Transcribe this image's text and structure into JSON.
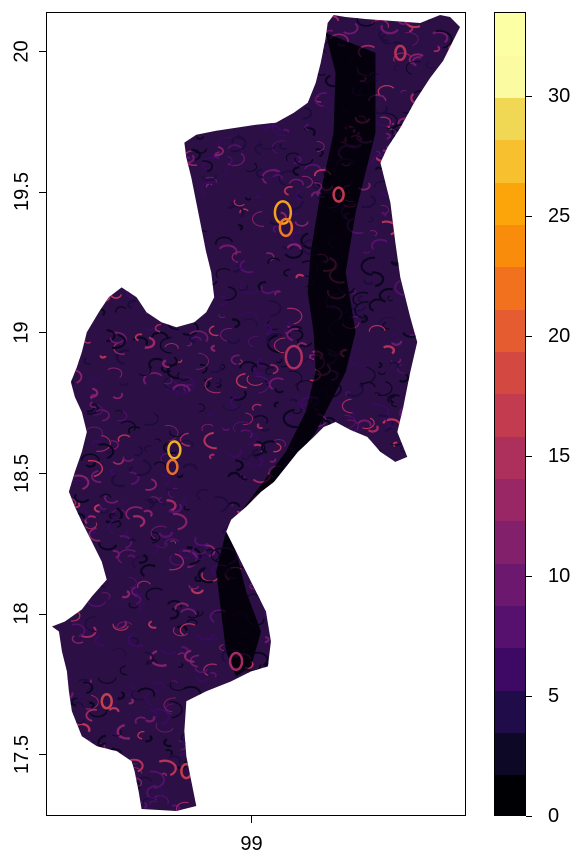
{
  "map": {
    "y_ticks": [
      {
        "value": 17.5,
        "label": "17.5"
      },
      {
        "value": 18.0,
        "label": "18"
      },
      {
        "value": 18.5,
        "label": "18.5"
      },
      {
        "value": 19.0,
        "label": "19"
      },
      {
        "value": 19.5,
        "label": "19.5"
      },
      {
        "value": 20.0,
        "label": "20"
      }
    ],
    "x_ticks": [
      {
        "value": 99,
        "label": "99"
      }
    ],
    "y_range": [
      17.28,
      20.14
    ],
    "x_range": [
      98.55,
      99.47
    ]
  },
  "legend": {
    "range": [
      0,
      33.5
    ],
    "ticks": [
      {
        "value": 0,
        "label": "0"
      },
      {
        "value": 5,
        "label": "5"
      },
      {
        "value": 10,
        "label": "10"
      },
      {
        "value": 15,
        "label": "15"
      },
      {
        "value": 20,
        "label": "20"
      },
      {
        "value": 25,
        "label": "25"
      },
      {
        "value": 30,
        "label": "30"
      }
    ],
    "colors": [
      "#000004",
      "#0c0826",
      "#210c4a",
      "#3d0965",
      "#56106e",
      "#6c186e",
      "#82206c",
      "#992766",
      "#ad305c",
      "#c33b4f",
      "#d44842",
      "#e55c30",
      "#f1711f",
      "#f98c0a",
      "#fca50a",
      "#f6c02e",
      "#f0d854",
      "#fbfba2",
      "#fcffa4"
    ]
  }
}
